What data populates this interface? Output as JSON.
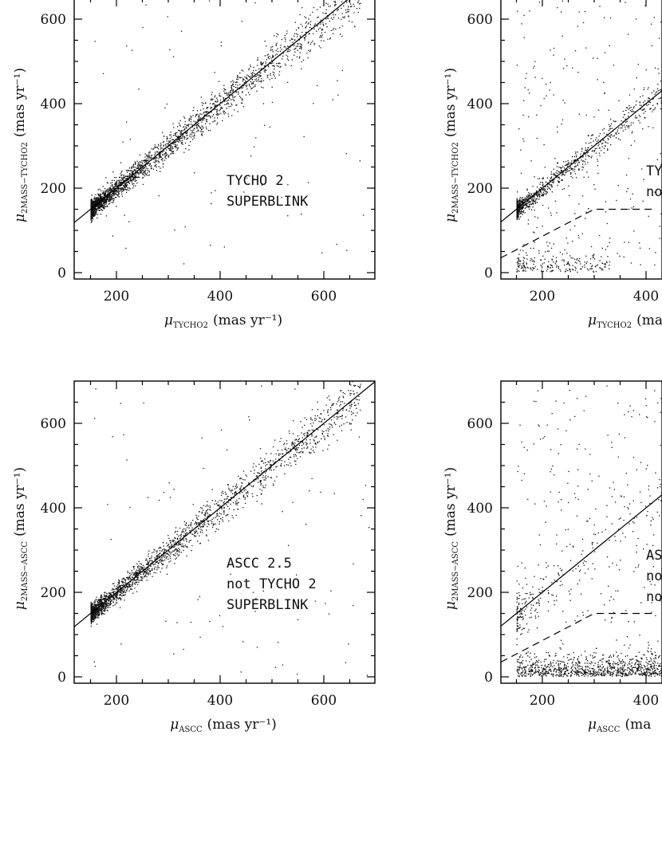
{
  "chart_data": [
    {
      "type": "scatter",
      "panel": "top-left",
      "xlabel": {
        "mu": "μ",
        "sub": "TYCHO2",
        "unit": "(mas yr⁻¹)"
      },
      "ylabel": {
        "mu": "μ",
        "sub": "2MASS−TYCHO2",
        "unit": "(mas yr⁻¹)"
      },
      "xlim": [
        120,
        700
      ],
      "ylim": [
        -10,
        700
      ],
      "x_ticks": [
        200,
        400,
        600
      ],
      "y_ticks": [
        0,
        200,
        400,
        600
      ],
      "annotation": [
        "TYCHO 2",
        "SUPERBLINK"
      ],
      "one_to_one_line": true,
      "dashed_cut": false,
      "density": "very dense along 1:1 line, cluster near 150–200",
      "series": [
        {
          "x": [
            155,
            160,
            170,
            180,
            200,
            220,
            250,
            280,
            300,
            350,
            400,
            450,
            500,
            550,
            600,
            650
          ],
          "y": [
            150,
            160,
            170,
            180,
            195,
            215,
            245,
            275,
            300,
            345,
            395,
            450,
            500,
            555,
            600,
            650
          ]
        }
      ],
      "outliers": {
        "x": [
          160,
          170,
          210,
          170,
          250,
          300,
          500,
          520
        ],
        "y": [
          620,
          600,
          590,
          510,
          520,
          290,
          580,
          560
        ]
      }
    },
    {
      "type": "scatter",
      "panel": "top-right",
      "xlabel": {
        "mu": "μ",
        "sub": "TYCHO2",
        "unit": "(ma"
      },
      "ylabel": {
        "mu": "μ",
        "sub": "2MASS−TYCHO2",
        "unit": "(mas yr⁻¹)"
      },
      "xlim": [
        120,
        420
      ],
      "ylim": [
        -10,
        700
      ],
      "x_ticks": [
        200,
        400
      ],
      "y_ticks": [
        0,
        200,
        400,
        600
      ],
      "annotation": [
        "TY",
        "no"
      ],
      "one_to_one_line": true,
      "dashed_cut": true,
      "cut_line": {
        "x": [
          120,
          300,
          420
        ],
        "y": [
          35,
          150,
          150
        ]
      },
      "series": [
        {
          "x": [
            155,
            170,
            200,
            230,
            260,
            300,
            340,
            380,
            410
          ],
          "y": [
            150,
            170,
            200,
            230,
            260,
            300,
            340,
            380,
            410
          ]
        }
      ],
      "low_cluster": {
        "x": [
          160,
          200,
          240,
          280,
          320
        ],
        "y": [
          20,
          30,
          25,
          40,
          30
        ]
      }
    },
    {
      "type": "scatter",
      "panel": "bottom-left",
      "xlabel": {
        "mu": "μ",
        "sub": "ASCC",
        "unit": "(mas yr⁻¹)"
      },
      "ylabel": {
        "mu": "μ",
        "sub": "2MASS−ASCC",
        "unit": "(mas yr⁻¹)"
      },
      "xlim": [
        120,
        700
      ],
      "ylim": [
        -10,
        700
      ],
      "x_ticks": [
        200,
        400,
        600
      ],
      "y_ticks": [
        0,
        200,
        400,
        600
      ],
      "annotation": [
        "ASCC 2.5",
        "not TYCHO 2",
        "SUPERBLINK"
      ],
      "one_to_one_line": true,
      "dashed_cut": false,
      "series": [
        {
          "x": [
            160,
            180,
            200,
            250,
            300,
            350,
            400,
            450,
            500,
            550,
            600,
            650,
            690
          ],
          "y": [
            165,
            180,
            200,
            250,
            300,
            350,
            400,
            450,
            500,
            550,
            600,
            650,
            690
          ]
        }
      ],
      "outliers": {
        "x": [
          170,
          180,
          230,
          260,
          390,
          430,
          510
        ],
        "y": [
          620,
          600,
          630,
          580,
          120,
          600,
          450
        ]
      }
    },
    {
      "type": "scatter",
      "panel": "bottom-right",
      "xlabel": {
        "mu": "μ",
        "sub": "ASCC",
        "unit": "(ma"
      },
      "ylabel": {
        "mu": "μ",
        "sub": "2MASS−ASCC",
        "unit": "(mas yr⁻¹)"
      },
      "xlim": [
        120,
        420
      ],
      "ylim": [
        -10,
        700
      ],
      "x_ticks": [
        200,
        400
      ],
      "y_ticks": [
        0,
        200,
        400,
        600
      ],
      "annotation": [
        "AS",
        "no",
        "no"
      ],
      "one_to_one_line": true,
      "dashed_cut": true,
      "cut_line": {
        "x": [
          120,
          300,
          420
        ],
        "y": [
          35,
          150,
          150
        ]
      },
      "series": [
        {
          "x": [
            155,
            200,
            250,
            300,
            350,
            400
          ],
          "y": [
            150,
            200,
            250,
            300,
            350,
            400
          ]
        }
      ],
      "low_cluster": {
        "x": [
          160,
          220,
          280,
          340,
          400
        ],
        "y": [
          15,
          25,
          30,
          20,
          35
        ]
      },
      "scatter_field": {
        "x": [
          160,
          200,
          260,
          320,
          380
        ],
        "y": [
          600,
          450,
          500,
          380,
          550
        ]
      }
    }
  ]
}
